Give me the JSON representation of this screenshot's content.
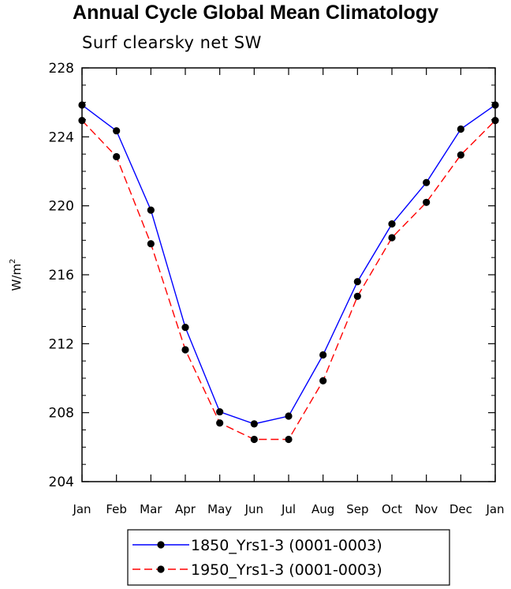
{
  "chart_data": {
    "type": "line",
    "title": "Annual Cycle Global Mean Climatology",
    "subtitle": "Surf clearsky net SW",
    "ylabel": "W/m",
    "ylabel_sup": "2",
    "xlabel": "",
    "categories": [
      "Jan",
      "Feb",
      "Mar",
      "Apr",
      "May",
      "Jun",
      "Jul",
      "Aug",
      "Sep",
      "Oct",
      "Nov",
      "Dec",
      "Jan"
    ],
    "ylim": [
      204,
      228
    ],
    "yticks": [
      204,
      208,
      212,
      216,
      220,
      224,
      228
    ],
    "legend_position": "bottom",
    "grid": false,
    "series": [
      {
        "name": "1850_Yrs1-3 (0001-0003)",
        "color": "#0000ff",
        "dash": "solid",
        "values": [
          225.85,
          224.35,
          219.75,
          212.95,
          208.05,
          207.35,
          207.8,
          211.35,
          215.6,
          218.95,
          221.35,
          224.45,
          225.85
        ]
      },
      {
        "name": "1950_Yrs1-3 (0001-0003)",
        "color": "#ff0000",
        "dash": "dashed",
        "values": [
          224.95,
          222.85,
          217.8,
          211.65,
          207.4,
          206.45,
          206.45,
          209.85,
          214.75,
          218.15,
          220.2,
          222.95,
          224.95
        ]
      }
    ]
  }
}
